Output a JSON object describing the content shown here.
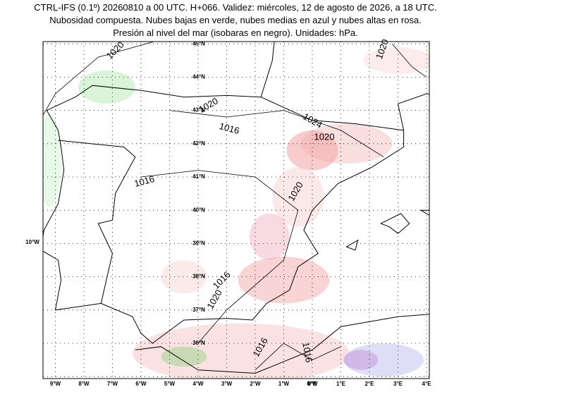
{
  "header": {
    "lines": [
      "CTRL-IFS (0.1º) 20260810 a 00 UTC. H+066. Validez: miércoles, 12 de agosto de 2026, a 18 UTC.",
      "Nubosidad compuesta. Nubes bajas en verde, nubes medias en azul y nubes altas en rosa.",
      "Presión al nivel del mar (isobaras en negro). Unidades: hPa."
    ]
  },
  "map": {
    "lat_labels": [
      "45°N",
      "44°N",
      "43°N",
      "42°N",
      "41°N",
      "40°N",
      "39°N",
      "38°N",
      "37°N",
      "36°N"
    ],
    "lon_labels": [
      "9°W",
      "8°W",
      "7°W",
      "6°W",
      "5°W",
      "4°W",
      "3°W",
      "2°W",
      "1°W",
      "0°W",
      "0°E",
      "1°E",
      "2°E",
      "3°E",
      "4°E"
    ],
    "left_label": "10°W",
    "isobar_labels": [
      "1020",
      "1020",
      "1016",
      "1024",
      "1020",
      "1016",
      "1020",
      "1016",
      "1020",
      "1016",
      "1016",
      "1020"
    ]
  }
}
